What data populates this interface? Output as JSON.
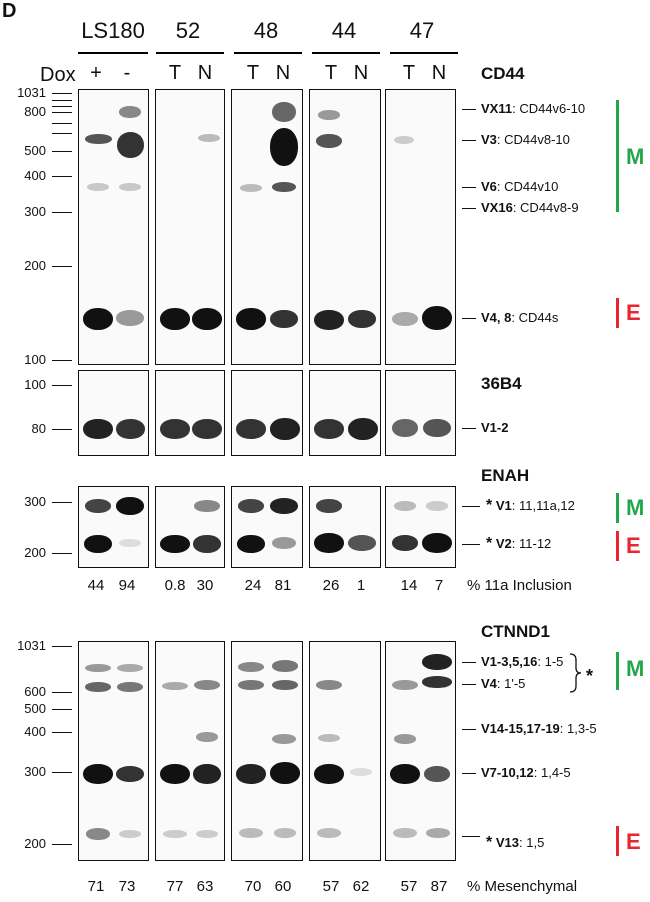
{
  "panel_letter": "D",
  "cell_lines": [
    "LS180",
    "52",
    "48",
    "44",
    "47"
  ],
  "dox_label": "Dox",
  "condition_labels": [
    "+",
    "-",
    "T",
    "N",
    "T",
    "N",
    "T",
    "N",
    "T",
    "N"
  ],
  "colors": {
    "M": "#21a84a",
    "E": "#e8262b",
    "band": "#141414"
  },
  "cd44": {
    "title": "CD44",
    "markers": [
      "1031",
      "800",
      "500",
      "400",
      "300",
      "200",
      "100"
    ],
    "bands": [
      {
        "name": "VX11",
        "desc": ": CD44v6-10"
      },
      {
        "name": "V3",
        "desc": ": CD44v8-10"
      },
      {
        "name": "V6",
        "desc": ": CD44v10"
      },
      {
        "name": "VX16",
        "desc": ": CD44v8-9"
      },
      {
        "name": "V4, 8",
        "desc": ": CD44s"
      }
    ],
    "m_label": "M",
    "e_label": "E"
  },
  "b36b4": {
    "title": "36B4",
    "markers": [
      "100",
      "80"
    ],
    "band": {
      "name": "V1-2",
      "desc": ""
    }
  },
  "enah": {
    "title": "ENAH",
    "markers": [
      "300",
      "200"
    ],
    "bands": [
      {
        "star": "*",
        "name": "V1",
        "desc": ": 11,11a,12"
      },
      {
        "star": "*",
        "name": "V2",
        "desc": ": 11-12"
      }
    ],
    "m_label": "M",
    "e_label": "E",
    "values": [
      "44",
      "94",
      "0.8",
      "30",
      "24",
      "81",
      "26",
      "1",
      "14",
      "7"
    ],
    "value_label": "% 11a Inclusion"
  },
  "ctnnd1": {
    "title": "CTNND1",
    "markers": [
      "1031",
      "600",
      "500",
      "400",
      "300",
      "200"
    ],
    "bands": [
      {
        "name": "V1-3,5,16",
        "desc": ": 1-5"
      },
      {
        "name": "V4",
        "desc": ": 1'-5"
      },
      {
        "name": "V14-15,17-19",
        "desc": ": 1,3-5"
      },
      {
        "name": "V7-10,12",
        "desc": ": 1,4-5"
      },
      {
        "star": "*",
        "name": "V13",
        "desc": ": 1,5"
      }
    ],
    "brace_star": "*",
    "m_label": "M",
    "e_label": "E",
    "values": [
      "71",
      "73",
      "77",
      "63",
      "70",
      "60",
      "57",
      "62",
      "57",
      "87"
    ],
    "value_label": "% Mesenchymal"
  }
}
